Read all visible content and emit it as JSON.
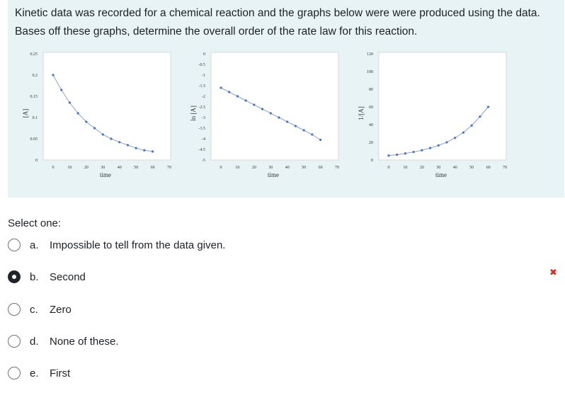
{
  "question": {
    "line1": "Kinetic data was recorded for a chemical reaction and the graphs below were were produced using the data.",
    "line2": "Bases off these graphs, determine the overall order of the rate law for this reaction."
  },
  "prompt": "Select one:",
  "options": [
    {
      "letter": "a.",
      "text": "Impossible to tell from the data given.",
      "selected": false
    },
    {
      "letter": "b.",
      "text": "Second",
      "selected": true
    },
    {
      "letter": "c.",
      "text": "Zero",
      "selected": false
    },
    {
      "letter": "d.",
      "text": "None of these.",
      "selected": false
    },
    {
      "letter": "e.",
      "text": "First",
      "selected": false
    }
  ],
  "feedback_mark": "✖",
  "colors": {
    "panel_bg": "#e7f3f5",
    "series": "#4472c4",
    "incorrect": "#ca3120"
  },
  "chart_data": [
    {
      "type": "line",
      "xlabel": "time",
      "ylabel": "[A]",
      "xlim": [
        0,
        70
      ],
      "ylim": [
        0,
        0.25
      ],
      "xticks": [
        "0",
        "10",
        "20",
        "30",
        "40",
        "50",
        "60",
        "70"
      ],
      "yticks": [
        "0",
        "0.05",
        "0.1",
        "0.15",
        "0.2",
        "0.25"
      ],
      "x": [
        0,
        5,
        10,
        15,
        20,
        25,
        30,
        35,
        40,
        45,
        50,
        55,
        60
      ],
      "y": [
        0.2,
        0.165,
        0.135,
        0.11,
        0.09,
        0.075,
        0.06,
        0.05,
        0.042,
        0.035,
        0.028,
        0.023,
        0.02
      ],
      "grid": false,
      "legend": "none"
    },
    {
      "type": "line",
      "xlabel": "time",
      "ylabel": "ln [A]",
      "xlim": [
        0,
        70
      ],
      "ylim": [
        -5,
        0
      ],
      "xticks": [
        "0",
        "10",
        "20",
        "30",
        "40",
        "50",
        "60",
        "70"
      ],
      "yticks": [
        "0",
        "-0.5",
        "-1",
        "-1.5",
        "-2",
        "-2.5",
        "-3",
        "-3.5",
        "-4",
        "-4.5",
        "-5"
      ],
      "x": [
        0,
        5,
        10,
        15,
        20,
        25,
        30,
        35,
        40,
        45,
        50,
        55,
        60
      ],
      "y": [
        -1.6,
        -1.8,
        -2.0,
        -2.2,
        -2.4,
        -2.6,
        -2.8,
        -3.0,
        -3.2,
        -3.4,
        -3.6,
        -3.8,
        -4.05
      ],
      "grid": false,
      "legend": "none"
    },
    {
      "type": "line",
      "xlabel": "time",
      "ylabel": "1/[A]",
      "xlim": [
        0,
        70
      ],
      "ylim": [
        0,
        120
      ],
      "xticks": [
        "0",
        "10",
        "20",
        "30",
        "40",
        "50",
        "60",
        "70"
      ],
      "yticks": [
        "0",
        "20",
        "40",
        "60",
        "80",
        "100",
        "120"
      ],
      "x": [
        0,
        5,
        10,
        15,
        20,
        25,
        30,
        35,
        40,
        45,
        50,
        55,
        60
      ],
      "y": [
        5,
        6,
        7.4,
        9.1,
        11,
        13.5,
        16.5,
        20,
        25,
        31,
        39,
        49,
        60
      ],
      "grid": false,
      "legend": "none"
    }
  ]
}
